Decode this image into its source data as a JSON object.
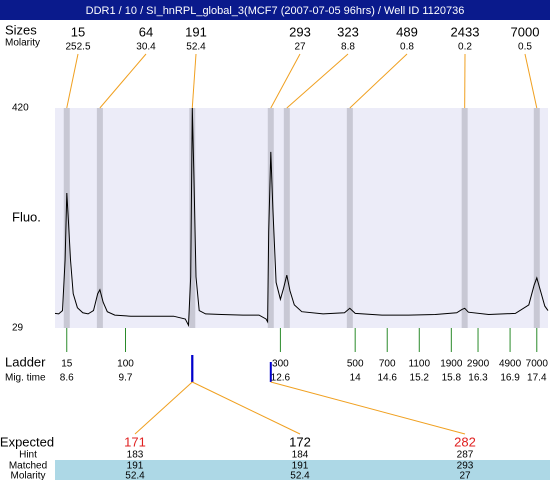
{
  "chart_data": {
    "type": "line",
    "title": "DDR1 / 10 / SI_hnRPL_global_3(MCF7 (2007-07-05 96hrs) / Well ID 1120736",
    "size_header": "Sizes",
    "molarity_header": "Molarity",
    "ylabel": "Fluo.",
    "ylim": [
      29,
      420
    ],
    "yticks": [
      29,
      420
    ],
    "xlim": [
      8.38,
      17.61
    ],
    "color": "#000000",
    "x": [
      8.38,
      8.45,
      8.52,
      8.57,
      8.6,
      8.63,
      8.67,
      8.72,
      8.8,
      8.9,
      9.0,
      9.1,
      9.18,
      9.22,
      9.28,
      9.36,
      9.5,
      9.8,
      10.2,
      10.6,
      10.82,
      10.88,
      10.92,
      10.95,
      10.98,
      11.02,
      11.08,
      11.2,
      11.5,
      11.9,
      12.2,
      12.33,
      12.36,
      12.38,
      12.42,
      12.46,
      12.52,
      12.6,
      12.66,
      12.72,
      12.78,
      12.86,
      13.0,
      13.4,
      13.8,
      13.9,
      14.0,
      14.5,
      15.0,
      15.5,
      15.9,
      16.0,
      16.05,
      16.12,
      16.5,
      17.0,
      17.25,
      17.35,
      17.4,
      17.47,
      17.55,
      17.61
    ],
    "values": [
      55,
      54,
      60,
      150,
      269,
      220,
      150,
      90,
      65,
      56,
      54,
      60,
      90,
      97,
      75,
      58,
      52,
      50,
      50,
      50,
      45,
      34,
      120,
      420,
      300,
      120,
      60,
      54,
      53,
      52,
      52,
      45,
      40,
      200,
      342,
      240,
      110,
      80,
      100,
      123,
      95,
      70,
      58,
      54,
      56,
      64,
      55,
      52,
      52,
      53,
      56,
      62,
      64,
      57,
      53,
      55,
      70,
      105,
      118,
      95,
      68,
      60
    ],
    "peaks": [
      {
        "size": 15,
        "molarity": 252.5,
        "time": 8.6
      },
      {
        "size": 64,
        "molarity": 30.4,
        "time": 9.22
      },
      {
        "size": 191,
        "molarity": 52.4,
        "time": 10.95
      },
      {
        "size": 293,
        "molarity": 27,
        "time": 12.42
      },
      {
        "size": 323,
        "molarity": 8.8,
        "time": 12.72
      },
      {
        "size": 489,
        "molarity": 0.8,
        "time": 13.9
      },
      {
        "size": 2433,
        "molarity": 0.2,
        "time": 16.05
      },
      {
        "size": 7000,
        "molarity": 0.5,
        "time": 17.4
      }
    ],
    "ladder_label": "Ladder",
    "time_label": "Mig. time",
    "ladder": [
      {
        "size": 15,
        "time": 8.6
      },
      {
        "size": 100,
        "time": 9.7
      },
      {
        "size": 300,
        "time": 12.6
      },
      {
        "size": 500,
        "time": 14
      },
      {
        "size": 700,
        "time": 14.6
      },
      {
        "size": 1100,
        "time": 15.2
      },
      {
        "size": 1900,
        "time": 15.8
      },
      {
        "size": 2900,
        "time": 16.3
      },
      {
        "size": 4900,
        "time": 16.9
      },
      {
        "size": 7000,
        "time": 17.4
      }
    ],
    "row_labels": [
      "Expected",
      "Hint",
      "Matched",
      "Molarity"
    ],
    "expected": [
      {
        "expected": 171,
        "hint": 183,
        "matched": 191,
        "molarity": 52.4,
        "color": "#e02020"
      },
      {
        "expected": 172,
        "hint": 184,
        "matched": 191,
        "molarity": 52.4,
        "color": "#000000"
      },
      {
        "expected": 282,
        "hint": 287,
        "matched": 293,
        "molarity": 27,
        "color": "#e02020"
      }
    ]
  }
}
